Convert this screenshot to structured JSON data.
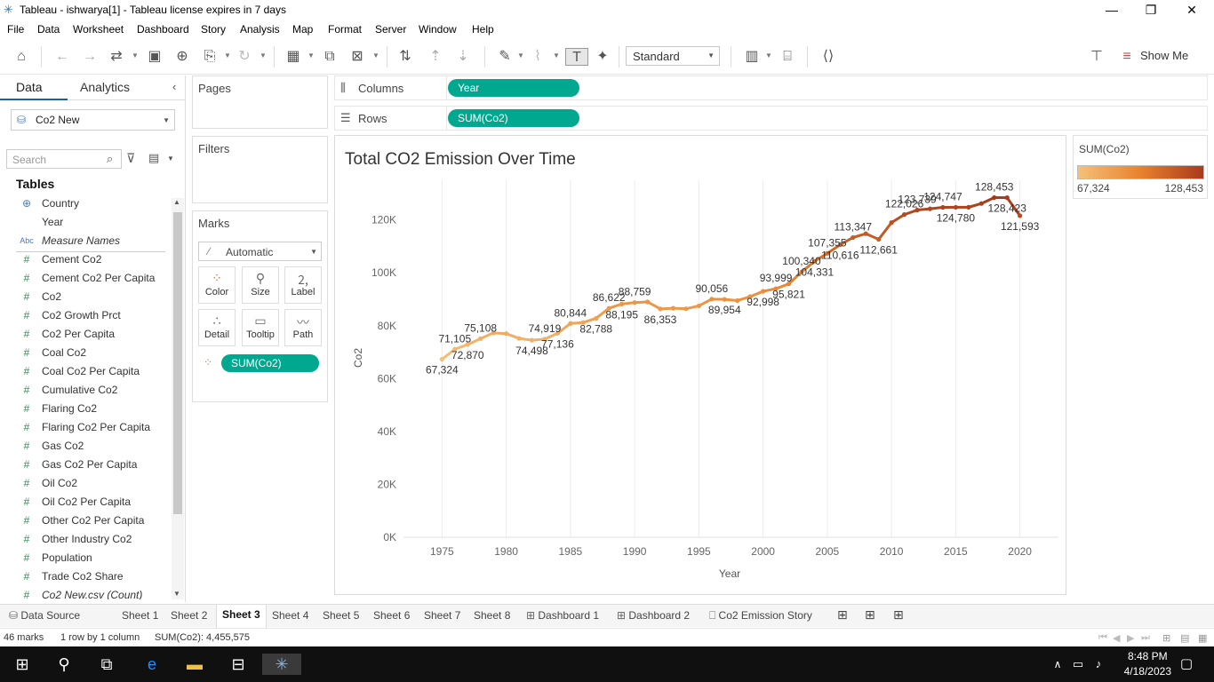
{
  "window": {
    "title": "Tableau - ishwarya[1] - Tableau license expires in 7 days"
  },
  "menu": [
    "File",
    "Data",
    "Worksheet",
    "Dashboard",
    "Story",
    "Analysis",
    "Map",
    "Format",
    "Server",
    "Window",
    "Help"
  ],
  "toolbar": {
    "fit": "Standard",
    "show_me": "Show Me"
  },
  "left_pane": {
    "tabs": [
      "Data",
      "Analytics"
    ],
    "datasource": "Co2 New",
    "search_placeholder": "Search",
    "tables_heading": "Tables",
    "fields": [
      {
        "icon": "globe-icon",
        "name": "Country",
        "italic": false
      },
      {
        "icon": "calendar-icon",
        "name": "Year",
        "italic": false
      },
      {
        "icon": "abc-icon",
        "name": "Measure Names",
        "italic": true
      },
      {
        "icon": "hash-icon",
        "name": "Cement Co2",
        "italic": false
      },
      {
        "icon": "hash-icon",
        "name": "Cement Co2 Per Capita",
        "italic": false
      },
      {
        "icon": "hash-icon",
        "name": "Co2",
        "italic": false
      },
      {
        "icon": "hash-icon",
        "name": "Co2 Growth Prct",
        "italic": false
      },
      {
        "icon": "hash-icon",
        "name": "Co2 Per Capita",
        "italic": false
      },
      {
        "icon": "hash-icon",
        "name": "Coal Co2",
        "italic": false
      },
      {
        "icon": "hash-icon",
        "name": "Coal Co2 Per Capita",
        "italic": false
      },
      {
        "icon": "hash-icon",
        "name": "Cumulative Co2",
        "italic": false
      },
      {
        "icon": "hash-icon",
        "name": "Flaring Co2",
        "italic": false
      },
      {
        "icon": "hash-icon",
        "name": "Flaring Co2 Per Capita",
        "italic": false
      },
      {
        "icon": "hash-icon",
        "name": "Gas Co2",
        "italic": false
      },
      {
        "icon": "hash-icon",
        "name": "Gas Co2 Per Capita",
        "italic": false
      },
      {
        "icon": "hash-icon",
        "name": "Oil Co2",
        "italic": false
      },
      {
        "icon": "hash-icon",
        "name": "Oil Co2 Per Capita",
        "italic": false
      },
      {
        "icon": "hash-icon",
        "name": "Other Co2 Per Capita",
        "italic": false
      },
      {
        "icon": "hash-icon",
        "name": "Other Industry Co2",
        "italic": false
      },
      {
        "icon": "hash-icon",
        "name": "Population",
        "italic": false
      },
      {
        "icon": "hash-icon",
        "name": "Trade Co2 Share",
        "italic": false
      },
      {
        "icon": "hash-icon",
        "name": "Co2 New.csv (Count)",
        "italic": true
      }
    ]
  },
  "cards": {
    "pages": "Pages",
    "filters": "Filters",
    "marks": "Marks",
    "mark_type": "Automatic",
    "mark_buttons": [
      "Color",
      "Size",
      "Label",
      "Detail",
      "Tooltip",
      "Path"
    ],
    "mark_pill": "SUM(Co2)"
  },
  "shelves": {
    "columns_label": "Columns",
    "columns_pill": "Year",
    "rows_label": "Rows",
    "rows_pill": "SUM(Co2)"
  },
  "legend": {
    "title": "SUM(Co2)",
    "min": "67,324",
    "max": "128,453",
    "color_low": "#f5c07a",
    "color_high": "#a83a1c"
  },
  "chart_data": {
    "type": "line",
    "title": "Total CO2 Emission Over Time",
    "xlabel": "Year",
    "ylabel": "Co2",
    "xlim": [
      1972,
      2023
    ],
    "ylim": [
      0,
      135000
    ],
    "x_ticks": [
      1975,
      1980,
      1985,
      1990,
      1995,
      2000,
      2005,
      2010,
      2015,
      2020
    ],
    "y_ticks": [
      0,
      20000,
      40000,
      60000,
      80000,
      100000,
      120000
    ],
    "y_tick_labels": [
      "0K",
      "20K",
      "40K",
      "60K",
      "80K",
      "100K",
      "120K"
    ],
    "grid": "vertical",
    "x": [
      1975,
      1976,
      1977,
      1978,
      1979,
      1980,
      1981,
      1982,
      1983,
      1984,
      1985,
      1986,
      1987,
      1988,
      1989,
      1990,
      1991,
      1992,
      1993,
      1994,
      1995,
      1996,
      1997,
      1998,
      1999,
      2000,
      2001,
      2002,
      2003,
      2004,
      2005,
      2006,
      2007,
      2008,
      2009,
      2010,
      2011,
      2012,
      2013,
      2014,
      2015,
      2016,
      2017,
      2018,
      2019,
      2020
    ],
    "values": [
      67324,
      71105,
      72870,
      75108,
      77300,
      77000,
      75200,
      74498,
      74919,
      77136,
      80844,
      81200,
      82788,
      86622,
      88195,
      88759,
      89000,
      86353,
      86600,
      86400,
      87500,
      90056,
      89954,
      89500,
      91000,
      92998,
      93999,
      95821,
      100340,
      104331,
      107355,
      110616,
      113347,
      114800,
      112661,
      119000,
      122026,
      123739,
      124200,
      124747,
      124780,
      124800,
      126200,
      128453,
      128423,
      121593
    ],
    "labels": [
      {
        "i": 0,
        "text": "67,324",
        "pos": "below"
      },
      {
        "i": 1,
        "text": "71,105",
        "pos": "above"
      },
      {
        "i": 2,
        "text": "72,870",
        "pos": "below"
      },
      {
        "i": 3,
        "text": "75,108",
        "pos": "above"
      },
      {
        "i": 7,
        "text": "74,498",
        "pos": "below"
      },
      {
        "i": 8,
        "text": "74,919",
        "pos": "above"
      },
      {
        "i": 9,
        "text": "77,136",
        "pos": "below"
      },
      {
        "i": 10,
        "text": "80,844",
        "pos": "above"
      },
      {
        "i": 12,
        "text": "82,788",
        "pos": "below"
      },
      {
        "i": 13,
        "text": "86,622",
        "pos": "above"
      },
      {
        "i": 14,
        "text": "88,195",
        "pos": "below"
      },
      {
        "i": 15,
        "text": "88,759",
        "pos": "above"
      },
      {
        "i": 17,
        "text": "86,353",
        "pos": "below"
      },
      {
        "i": 21,
        "text": "90,056",
        "pos": "above"
      },
      {
        "i": 22,
        "text": "89,954",
        "pos": "below"
      },
      {
        "i": 25,
        "text": "92,998",
        "pos": "below"
      },
      {
        "i": 26,
        "text": "93,999",
        "pos": "above"
      },
      {
        "i": 27,
        "text": "95,821",
        "pos": "below"
      },
      {
        "i": 28,
        "text": "100,340",
        "pos": "above"
      },
      {
        "i": 29,
        "text": "104,331",
        "pos": "below"
      },
      {
        "i": 30,
        "text": "107,355",
        "pos": "above"
      },
      {
        "i": 31,
        "text": "110,616",
        "pos": "below"
      },
      {
        "i": 32,
        "text": "113,347",
        "pos": "above"
      },
      {
        "i": 34,
        "text": "112,661",
        "pos": "below"
      },
      {
        "i": 36,
        "text": "122,026",
        "pos": "above"
      },
      {
        "i": 37,
        "text": "123,739",
        "pos": "above"
      },
      {
        "i": 39,
        "text": "124,747",
        "pos": "above"
      },
      {
        "i": 40,
        "text": "124,780",
        "pos": "below"
      },
      {
        "i": 43,
        "text": "128,453",
        "pos": "above"
      },
      {
        "i": 44,
        "text": "128,423",
        "pos": "below"
      },
      {
        "i": 45,
        "text": "121,593",
        "pos": "below"
      }
    ]
  },
  "sheet_tabs": [
    {
      "name": "Data Source",
      "icon": "database-icon",
      "active": false
    },
    {
      "name": "Sheet 1",
      "active": false
    },
    {
      "name": "Sheet 2",
      "active": false
    },
    {
      "name": "Sheet 3",
      "active": true
    },
    {
      "name": "Sheet 4",
      "active": false
    },
    {
      "name": "Sheet 5",
      "active": false
    },
    {
      "name": "Sheet 6",
      "active": false
    },
    {
      "name": "Sheet 7",
      "active": false
    },
    {
      "name": "Sheet 8",
      "active": false
    },
    {
      "name": "Dashboard 1",
      "icon": "dashboard-icon",
      "active": false
    },
    {
      "name": "Dashboard 2",
      "icon": "dashboard-icon",
      "active": false
    },
    {
      "name": "Co2 Emission Story",
      "icon": "story-icon",
      "active": false
    }
  ],
  "status": {
    "marks": "46 marks",
    "rows_cols": "1 row by 1 column",
    "sum": "SUM(Co2): 4,455,575"
  },
  "taskbar": {
    "time": "8:48 PM",
    "date": "4/18/2023"
  }
}
